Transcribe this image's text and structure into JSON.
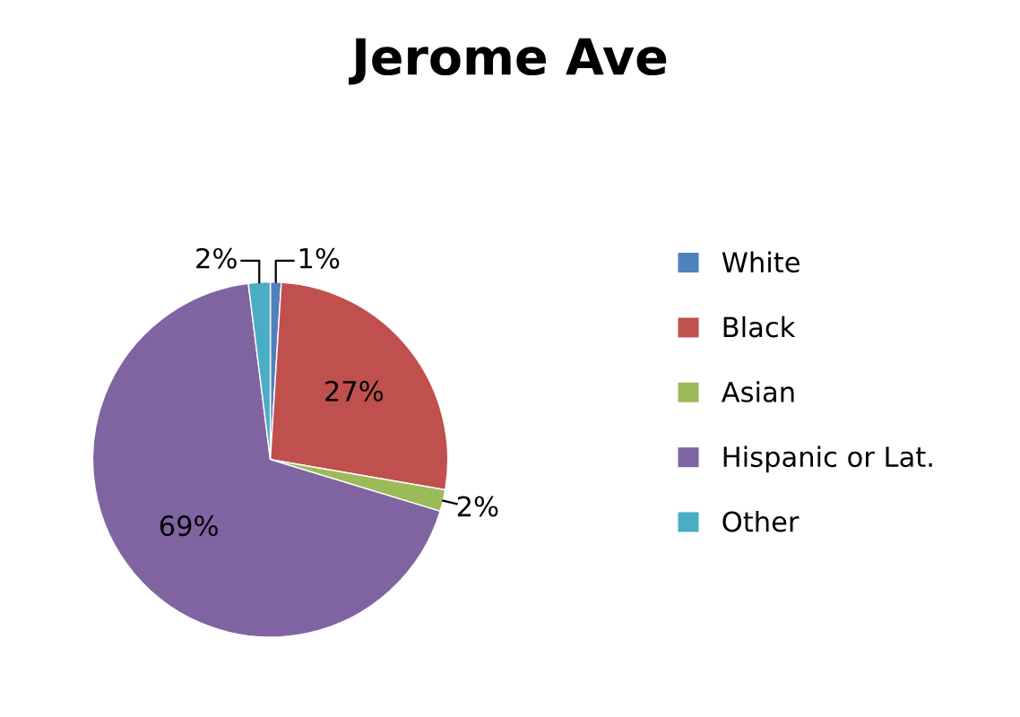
{
  "chart_data": {
    "type": "pie",
    "title": "Jerome Ave",
    "categories": [
      "White",
      "Black",
      "Asian",
      "Hispanic or Lat.",
      "Other"
    ],
    "values": [
      1,
      27,
      2,
      69,
      2
    ],
    "colors": [
      "#4f81bd",
      "#c0504d",
      "#9bbb59",
      "#8064a2",
      "#4bacc6"
    ],
    "value_labels": [
      "1%",
      "27%",
      "2%",
      "69%",
      "2%"
    ],
    "legend": "right"
  }
}
